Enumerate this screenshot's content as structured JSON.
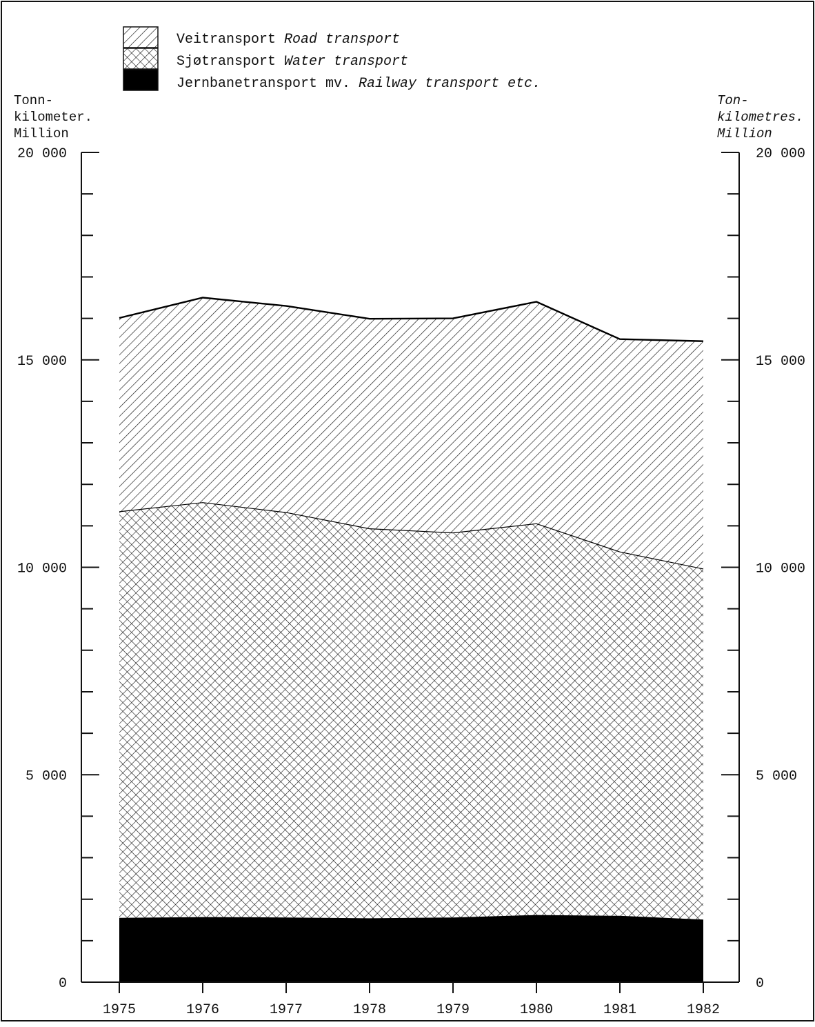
{
  "chart_data": {
    "type": "area",
    "stacked": true,
    "x": [
      1975,
      1976,
      1977,
      1978,
      1979,
      1980,
      1981,
      1982
    ],
    "series": [
      {
        "name": "Jernbanetransport mv.",
        "name_en": "Railway transport etc.",
        "fill": "solid-black",
        "values": [
          1550,
          1570,
          1560,
          1540,
          1560,
          1620,
          1600,
          1510
        ]
      },
      {
        "name": "Sjøtransport",
        "name_en": "Water transport",
        "fill": "crosshatch",
        "values": [
          9800,
          10000,
          9770,
          9400,
          9280,
          9440,
          8780,
          8460
        ]
      },
      {
        "name": "Veitransport",
        "name_en": "Road transport",
        "fill": "diagonal-hatch",
        "values": [
          4660,
          4930,
          4970,
          5050,
          5160,
          5340,
          5120,
          5480
        ]
      }
    ],
    "ylim": [
      0,
      20000
    ],
    "yticks_labeled": [
      0,
      5000,
      10000,
      15000,
      20000
    ],
    "yticks_labels": [
      "0",
      "5 000",
      "10 000",
      "15 000",
      "20 000"
    ],
    "y_minor_step": 1000,
    "left_axis_title": [
      "Tonn-",
      "kilometer.",
      "Million"
    ],
    "right_axis_title": [
      "Ton-",
      "kilometres.",
      "Million"
    ],
    "legend_position": "top-left",
    "grid": false
  }
}
